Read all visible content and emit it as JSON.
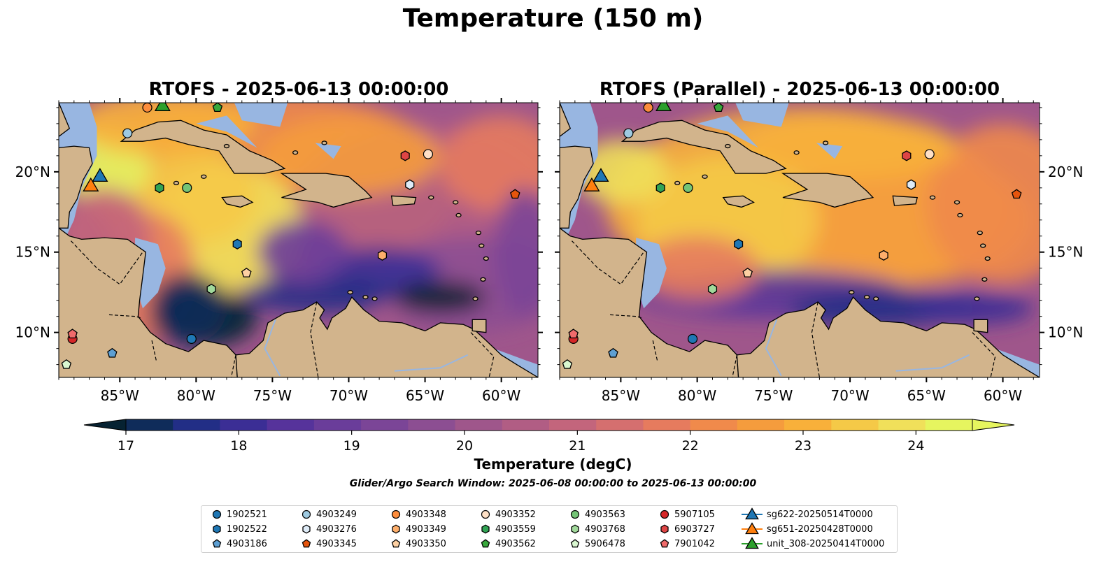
{
  "suptitle": "Temperature (150 m)",
  "panels": [
    {
      "title": "RTOFS - 2025-06-13 00:00:00",
      "ticks_side": "left"
    },
    {
      "title": "RTOFS (Parallel) - 2025-06-13 00:00:00",
      "ticks_side": "right"
    }
  ],
  "map": {
    "lon_range": [
      -89,
      -57.6
    ],
    "lat_range": [
      7.2,
      24.3
    ],
    "lon_ticks": [
      "85°W",
      "80°W",
      "75°W",
      "70°W",
      "65°W",
      "60°W"
    ],
    "lon_tick_values": [
      -85,
      -80,
      -75,
      -70,
      -65,
      -60
    ],
    "lat_ticks": [
      "10°N",
      "15°N",
      "20°N"
    ],
    "lat_tick_values": [
      10,
      15,
      20
    ],
    "land_color": "#d2b48c",
    "shallow_color": "#98b6e1"
  },
  "colorbar": {
    "min": 17,
    "max": 24.5,
    "ticks": [
      "17",
      "18",
      "19",
      "20",
      "21",
      "22",
      "23",
      "24"
    ],
    "label": "Temperature (degC)",
    "colors": [
      "#062232",
      "#0f2c5a",
      "#222e86",
      "#3b2e95",
      "#56339b",
      "#6a3d9a",
      "#7b4597",
      "#8c4e92",
      "#9f568b",
      "#b15d84",
      "#c3657c",
      "#d56f6f",
      "#e67b5e",
      "#f08a4b",
      "#f59c3d",
      "#f8b03a",
      "#f5c947",
      "#f0e05a",
      "#e6f55f"
    ]
  },
  "search_window": "Glider/Argo Search Window: 2025-06-08 00:00:00 to 2025-06-13 00:00:00",
  "legend": [
    {
      "label": "1902521",
      "marker": "circle",
      "color": "#1f77b4"
    },
    {
      "label": "1902522",
      "marker": "hexagon",
      "color": "#1f77b4"
    },
    {
      "label": "4903186",
      "marker": "pentagon",
      "color": "#5d9fd3"
    },
    {
      "label": "4903249",
      "marker": "circle",
      "color": "#9ecae1"
    },
    {
      "label": "4903276",
      "marker": "hexagon",
      "color": "#deebf7"
    },
    {
      "label": "4903345",
      "marker": "pentagon",
      "color": "#e6550d"
    },
    {
      "label": "4903348",
      "marker": "circle",
      "color": "#fd8d3c"
    },
    {
      "label": "4903349",
      "marker": "hexagon",
      "color": "#fdae6b"
    },
    {
      "label": "4903350",
      "marker": "pentagon",
      "color": "#fdd0a2"
    },
    {
      "label": "4903352",
      "marker": "circle",
      "color": "#fee0c6"
    },
    {
      "label": "4903559",
      "marker": "hexagon",
      "color": "#31a354"
    },
    {
      "label": "4903562",
      "marker": "pentagon",
      "color": "#38a83c"
    },
    {
      "label": "4903563",
      "marker": "circle",
      "color": "#74c476"
    },
    {
      "label": "4903768",
      "marker": "hexagon",
      "color": "#a1d99b"
    },
    {
      "label": "5906478",
      "marker": "pentagon",
      "color": "#d9f7d0"
    },
    {
      "label": "5907105",
      "marker": "circle",
      "color": "#d62728"
    },
    {
      "label": "6903727",
      "marker": "hexagon",
      "color": "#de4545"
    },
    {
      "label": "7901042",
      "marker": "pentagon",
      "color": "#f06b6b"
    },
    {
      "label": "sg622-20250514T0000",
      "marker": "triangle",
      "color": "#1f77b4"
    },
    {
      "label": "sg651-20250428T0000",
      "marker": "triangle",
      "color": "#ff7f0e"
    },
    {
      "label": "unit_308-20250414T0000",
      "marker": "triangle",
      "color": "#2ca02c"
    }
  ],
  "floats": [
    {
      "id": "1902521",
      "lon": -80.3,
      "lat": 9.6
    },
    {
      "id": "1902522",
      "lon": -77.3,
      "lat": 15.5
    },
    {
      "id": "4903186",
      "lon": -85.5,
      "lat": 8.7
    },
    {
      "id": "4903249",
      "lon": -84.5,
      "lat": 22.4
    },
    {
      "id": "4903276",
      "lon": -66.0,
      "lat": 19.2
    },
    {
      "id": "4903345",
      "lon": -59.1,
      "lat": 18.6
    },
    {
      "id": "4903348",
      "lon": -83.2,
      "lat": 24.0
    },
    {
      "id": "4903349",
      "lon": -67.8,
      "lat": 14.8
    },
    {
      "id": "4903350",
      "lon": -76.7,
      "lat": 13.7
    },
    {
      "id": "4903352",
      "lon": -64.8,
      "lat": 21.1
    },
    {
      "id": "4903559",
      "lon": -82.4,
      "lat": 19.0
    },
    {
      "id": "4903562",
      "lon": -78.6,
      "lat": 24.0
    },
    {
      "id": "4903563",
      "lon": -80.6,
      "lat": 19.0
    },
    {
      "id": "4903768",
      "lon": -79.0,
      "lat": 12.7
    },
    {
      "id": "5906478",
      "lon": -88.5,
      "lat": 8.0
    },
    {
      "id": "5907105",
      "lon": -88.1,
      "lat": 9.6
    },
    {
      "id": "6903727",
      "lon": -66.3,
      "lat": 21.0
    },
    {
      "id": "7901042",
      "lon": -88.1,
      "lat": 9.9
    }
  ],
  "gliders": [
    {
      "id": "sg622-20250514T0000",
      "lon": -86.3,
      "lat": 19.8
    },
    {
      "id": "sg651-20250428T0000",
      "lon": -86.9,
      "lat": 19.2
    },
    {
      "id": "unit_308-20250414T0000",
      "lon": -82.2,
      "lat": 24.2
    }
  ]
}
